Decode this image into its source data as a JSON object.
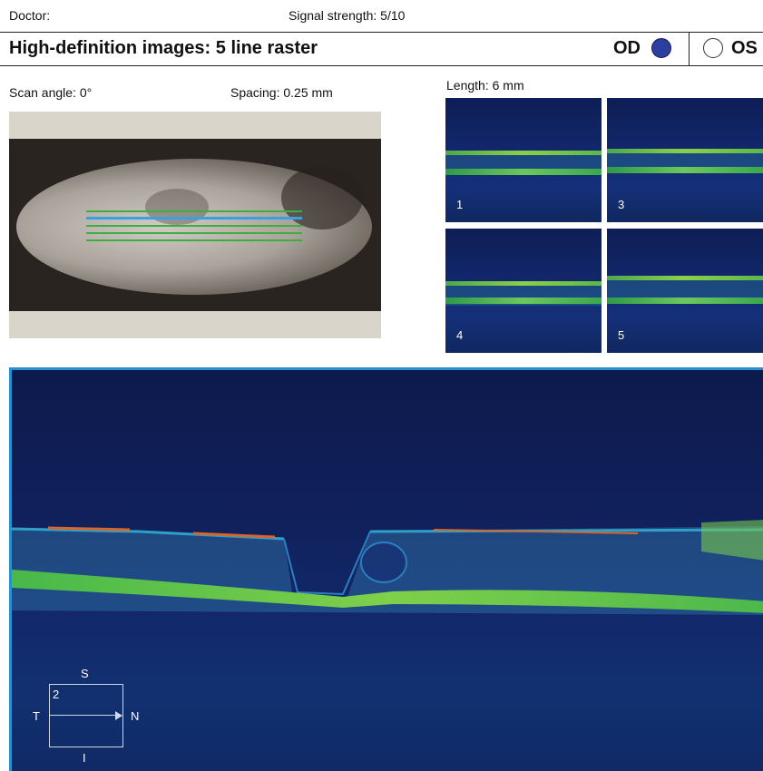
{
  "header": {
    "doctor_label": "Doctor:",
    "signal_strength": "Signal strength: 5/10",
    "title": "High-definition images: 5 line raster",
    "eye_od": "OD",
    "eye_os": "OS",
    "selected_eye": "OD",
    "od_color": "#2b3fa0"
  },
  "scan_info": {
    "scan_angle": "Scan angle: 0°",
    "spacing": "Spacing: 0.25 mm",
    "length": "Length: 6 mm"
  },
  "scan_lines": {
    "highlight_color": "#3aa0e0",
    "line_color": "#3fae3f"
  },
  "thumbnails": [
    {
      "label": "1"
    },
    {
      "label": "3"
    },
    {
      "label": "4"
    },
    {
      "label": "5"
    }
  ],
  "main_scan": {
    "orientation_box": {
      "superior": "S",
      "inferior": "I",
      "temporal": "T",
      "nasal": "N",
      "line_number": "2"
    }
  }
}
